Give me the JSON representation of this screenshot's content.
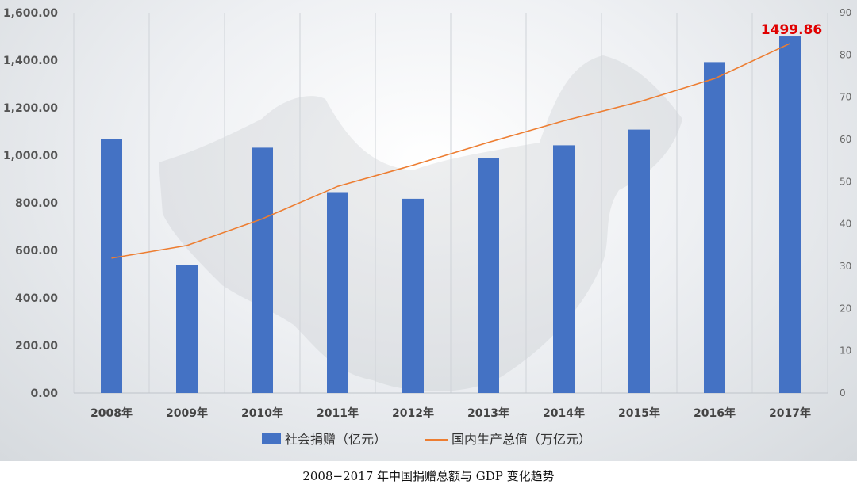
{
  "caption": "2008−2017 年中国捐赠总额与 GDP 变化趋势",
  "chart_data": {
    "type": "bar",
    "categories": [
      "2008年",
      "2009年",
      "2010年",
      "2011年",
      "2012年",
      "2013年",
      "2014年",
      "2015年",
      "2016年",
      "2017年"
    ],
    "series": [
      {
        "name": "社会捐赠（亿元）",
        "type": "bar",
        "axis": "left",
        "color": "#4472C4",
        "values": [
          1070,
          540,
          1032,
          845,
          817,
          989,
          1042,
          1108,
          1392,
          1499.86
        ]
      },
      {
        "name": "国内生产总值（万亿元）",
        "type": "line",
        "axis": "right",
        "color": "#ED7D31",
        "values": [
          31.9,
          34.9,
          41.2,
          48.9,
          53.9,
          59.3,
          64.4,
          68.9,
          74.4,
          82.7
        ]
      }
    ],
    "left_axis": {
      "range": [
        0,
        1600
      ],
      "ticks": [
        "0.00",
        "200.00",
        "400.00",
        "600.00",
        "800.00",
        "1,000.00",
        "1,200.00",
        "1,400.00",
        "1,600.00"
      ]
    },
    "right_axis": {
      "range": [
        0,
        90
      ],
      "ticks": [
        "0",
        "10",
        "20",
        "30",
        "40",
        "50",
        "60",
        "70",
        "80",
        "90"
      ]
    },
    "annotation": {
      "text": "1499.86",
      "category_index": 9,
      "color": "#E00000"
    },
    "grid": "vertical",
    "legend": {
      "position": "bottom",
      "entries": [
        "社会捐赠（亿元）",
        "国内生产总值（万亿元）"
      ]
    }
  }
}
